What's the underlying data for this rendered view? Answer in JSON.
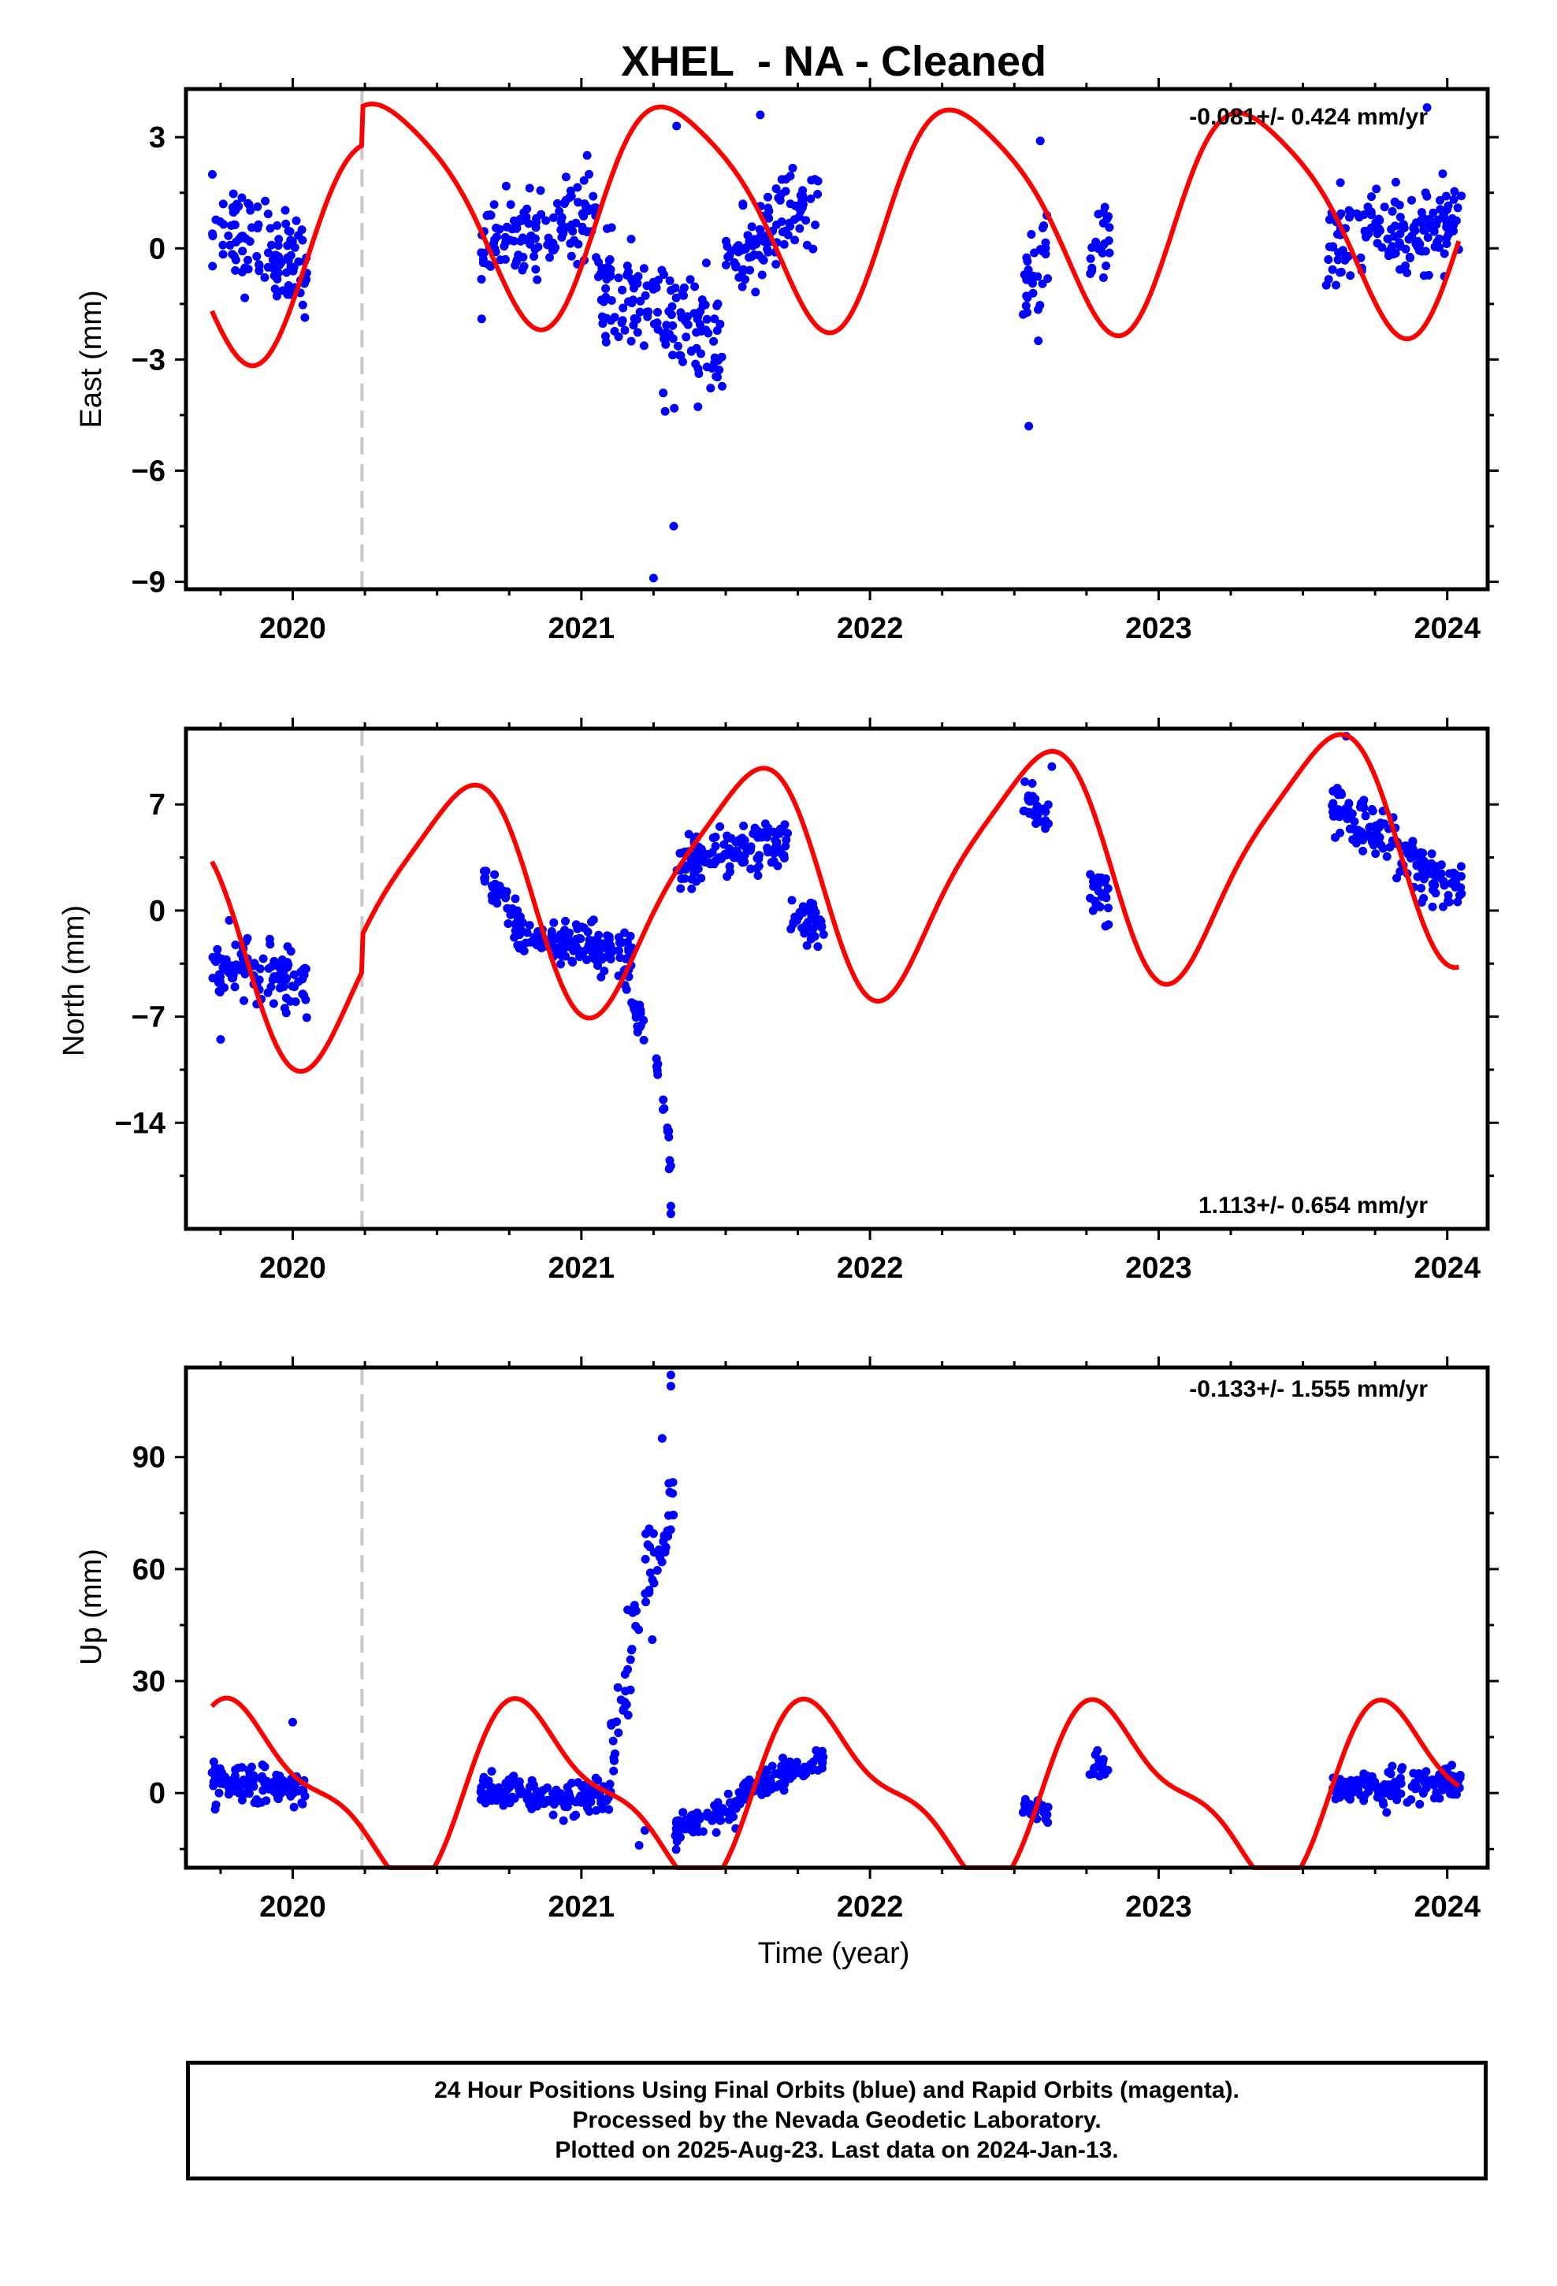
{
  "chart_data": {
    "type": "scatter",
    "title": "XHEL  - NA - Cleaned",
    "xlabel": "Time (year)",
    "xlim": [
      2019.63,
      2024.14
    ],
    "x_ticks": [
      2020,
      2021,
      2022,
      2023,
      2024
    ],
    "x_tick_labels": [
      "2020",
      "2021",
      "2022",
      "2023",
      "2024"
    ],
    "reference_line_x": 2020.24,
    "colors": {
      "data_points": "#0000ff",
      "model": "#ff0000",
      "reference_line": "#c8c8c8"
    },
    "panels": [
      {
        "name": "east",
        "ylabel": "East (mm)",
        "ylim": [
          -9.2,
          4.3
        ],
        "y_ticks": [
          3,
          0,
          -3,
          -6,
          -9
        ],
        "y_tick_labels": [
          "3",
          "0",
          "−3",
          "−6",
          "−9"
        ],
        "rate_text": "-0.081+/- 0.424 mm/yr",
        "rate_position": "top-right",
        "segments": [
          {
            "x0": 2019.72,
            "x1": 2020.05,
            "y0": 0.6,
            "y1": -0.4,
            "spread": 1.2
          },
          {
            "x0": 2020.65,
            "x1": 2021.05,
            "y0": 0.0,
            "y1": 1.0,
            "spread": 1.0
          },
          {
            "x0": 2021.05,
            "x1": 2021.5,
            "y0": -1.0,
            "y1": -2.8,
            "spread": 1.4
          },
          {
            "x0": 2021.5,
            "x1": 2021.82,
            "y0": -0.5,
            "y1": 1.5,
            "spread": 1.0
          },
          {
            "x0": 2022.53,
            "x1": 2022.62,
            "y0": -1.5,
            "y1": 0.0,
            "spread": 1.2
          },
          {
            "x0": 2022.76,
            "x1": 2022.83,
            "y0": -0.5,
            "y1": 0.5,
            "spread": 1.2
          },
          {
            "x0": 2023.58,
            "x1": 2024.05,
            "y0": 0.0,
            "y1": 0.8,
            "spread": 1.0
          }
        ],
        "outliers": [
          [
            2021.32,
            -7.5
          ],
          [
            2021.25,
            -8.9
          ],
          [
            2021.29,
            -4.4
          ],
          [
            2021.33,
            3.3
          ],
          [
            2022.55,
            -4.8
          ],
          [
            2022.59,
            2.9
          ],
          [
            2021.62,
            3.6
          ],
          [
            2023.93,
            3.8
          ]
        ],
        "model": {
          "offset": 0.0,
          "rate": -0.081,
          "ann_cos": -1.47,
          "ann_sin": 2.52,
          "semi_cos": -0.15,
          "semi_sin": 0.5,
          "step_x": 2020.24,
          "step_size": 1.05
        }
      },
      {
        "name": "north",
        "ylabel": "North (mm)",
        "ylim": [
          -21,
          12
        ],
        "y_ticks": [
          7,
          0,
          -7,
          -14
        ],
        "y_tick_labels": [
          "7",
          "0",
          "−7",
          "−14"
        ],
        "rate_text": "1.113+/- 0.654 mm/yr",
        "rate_position": "bottom-right",
        "segments": [
          {
            "x0": 2019.72,
            "x1": 2020.05,
            "y0": -3.5,
            "y1": -5.0,
            "spread": 1.8
          },
          {
            "x0": 2020.65,
            "x1": 2020.8,
            "y0": 3.0,
            "y1": -1.5,
            "spread": 1.5
          },
          {
            "x0": 2020.8,
            "x1": 2021.18,
            "y0": -2.0,
            "y1": -2.5,
            "spread": 1.3
          },
          {
            "x0": 2021.15,
            "x1": 2021.22,
            "y0": -4.0,
            "y1": -8.5,
            "spread": 1.5
          },
          {
            "x0": 2021.26,
            "x1": 2021.31,
            "y0": -10.5,
            "y1": -17.0,
            "spread": 1.5
          },
          {
            "x0": 2021.33,
            "x1": 2021.72,
            "y0": 3.0,
            "y1": 4.5,
            "spread": 1.6
          },
          {
            "x0": 2021.72,
            "x1": 2021.84,
            "y0": -0.5,
            "y1": -1.5,
            "spread": 1.3
          },
          {
            "x0": 2022.53,
            "x1": 2022.62,
            "y0": 7.5,
            "y1": 6.5,
            "spread": 1.4
          },
          {
            "x0": 2022.76,
            "x1": 2022.83,
            "y0": 1.5,
            "y1": 0.5,
            "spread": 1.2
          },
          {
            "x0": 2023.6,
            "x1": 2024.05,
            "y0": 7.0,
            "y1": 1.0,
            "spread": 1.6
          }
        ],
        "outliers": [
          [
            2021.31,
            -20.0
          ],
          [
            2021.31,
            -19.5
          ],
          [
            2019.75,
            -8.5
          ],
          [
            2023.65,
            11.5
          ],
          [
            2022.63,
            9.5
          ]
        ],
        "model": {
          "offset": 0.0,
          "rate": 1.113,
          "ann_cos": -6.8,
          "ann_sin": -3.1,
          "semi_cos": -1.4,
          "semi_sin": 0.4,
          "step_x": 2020.24,
          "step_size": 2.4
        }
      },
      {
        "name": "up",
        "ylabel": "Up (mm)",
        "ylim": [
          -20,
          114
        ],
        "y_ticks": [
          90,
          60,
          30,
          0
        ],
        "y_tick_labels": [
          "90",
          "60",
          "30",
          "0"
        ],
        "rate_text": "-0.133+/- 1.555 mm/yr",
        "rate_position": "top-right",
        "segments": [
          {
            "x0": 2019.72,
            "x1": 2020.05,
            "y0": 4.0,
            "y1": 1.0,
            "spread": 4.5
          },
          {
            "x0": 2020.65,
            "x1": 2021.1,
            "y0": 1.0,
            "y1": -2.0,
            "spread": 4.0
          },
          {
            "x0": 2021.1,
            "x1": 2021.2,
            "y0": 10.0,
            "y1": 45.0,
            "spread": 12.0
          },
          {
            "x0": 2021.22,
            "x1": 2021.32,
            "y0": 55.0,
            "y1": 75.0,
            "spread": 14.0
          },
          {
            "x0": 2021.32,
            "x1": 2021.55,
            "y0": -10.0,
            "y1": -4.0,
            "spread": 4.0
          },
          {
            "x0": 2021.55,
            "x1": 2021.84,
            "y0": 0.0,
            "y1": 9.0,
            "spread": 3.5
          },
          {
            "x0": 2022.53,
            "x1": 2022.62,
            "y0": -4.0,
            "y1": -5.0,
            "spread": 3.0
          },
          {
            "x0": 2022.76,
            "x1": 2022.83,
            "y0": 6.0,
            "y1": 8.0,
            "spread": 4.0
          },
          {
            "x0": 2023.6,
            "x1": 2024.05,
            "y0": 1.0,
            "y1": 2.0,
            "spread": 4.0
          }
        ],
        "outliers": [
          [
            2021.31,
            112.0
          ],
          [
            2021.31,
            109.0
          ],
          [
            2021.28,
            95.0
          ],
          [
            2021.2,
            -14.0
          ],
          [
            2021.22,
            -10.0
          ],
          [
            2020.0,
            19.0
          ]
        ],
        "model": {
          "offset": 0.0,
          "rate": -0.133,
          "ann_cos": 11.7,
          "ann_sin": -17.8,
          "semi_cos": -7.0,
          "semi_sin": 3.0,
          "step_x": null,
          "step_size": 0
        }
      }
    ]
  },
  "footer": {
    "line1": "24 Hour Positions Using Final Orbits (blue) and Rapid Orbits (magenta).",
    "line2": "Processed by the Nevada Geodetic Laboratory.",
    "line3": "Plotted on 2025-Aug-23. Last data on 2024-Jan-13."
  }
}
